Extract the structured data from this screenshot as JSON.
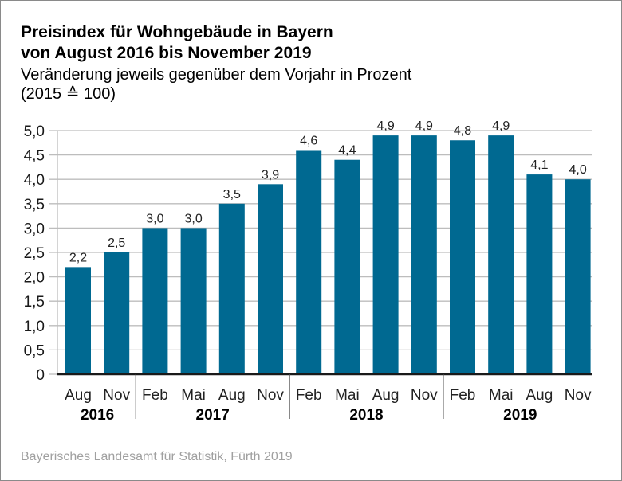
{
  "chart_data": {
    "type": "bar",
    "title": "Preisindex für Wohngebäude in Bayern",
    "title_line2": "von August 2016 bis November 2019",
    "subtitle": "Veränderung jeweils gegenüber dem Vorjahr in Prozent",
    "subtitle_line2": "(2015 ≙ 100)",
    "source": "Bayerisches Landesamt für Statistik, Fürth 2019",
    "xlabel": "",
    "ylabel": "",
    "ylim": [
      0,
      5
    ],
    "ytick_step": 0.5,
    "yticks": [
      "0",
      "0,5",
      "1,0",
      "1,5",
      "2,0",
      "2,5",
      "3,0",
      "3,5",
      "4,0",
      "4,5",
      "5,0"
    ],
    "grid": true,
    "bar_color": "#006991",
    "categories": [
      "Aug",
      "Nov",
      "Feb",
      "Mai",
      "Aug",
      "Nov",
      "Feb",
      "Mai",
      "Aug",
      "Nov",
      "Feb",
      "Mai",
      "Aug",
      "Nov"
    ],
    "values": [
      2.2,
      2.5,
      3.0,
      3.0,
      3.5,
      3.9,
      4.6,
      4.4,
      4.9,
      4.9,
      4.8,
      4.9,
      4.1,
      4.0
    ],
    "value_labels": [
      "2,2",
      "2,5",
      "3,0",
      "3,0",
      "3,5",
      "3,9",
      "4,6",
      "4,4",
      "4,9",
      "4,9",
      "4,8",
      "4,9",
      "4,1",
      "4,0"
    ],
    "year_groups": [
      {
        "label": "2016",
        "start": 0,
        "end": 1
      },
      {
        "label": "2017",
        "start": 2,
        "end": 5
      },
      {
        "label": "2018",
        "start": 6,
        "end": 9
      },
      {
        "label": "2019",
        "start": 10,
        "end": 13
      }
    ]
  }
}
